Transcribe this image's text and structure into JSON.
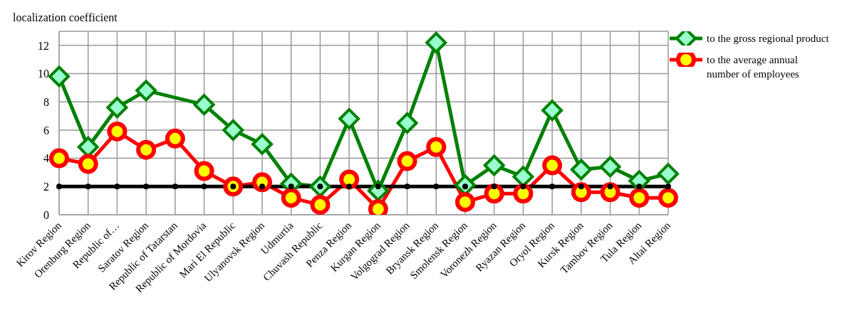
{
  "chart_data": {
    "type": "line",
    "ylabel": "localization coefficient",
    "categories": [
      "Kirov Region",
      "Orenburg Region",
      "Republic of…",
      "Saratov Region",
      "Republic of Tatarstan",
      "Republic of Mordovia",
      "Mari El Republic",
      "Ulyanovsk Region",
      "Udmurtia",
      "Chuvash Republic",
      "Penza Region",
      "Kurgan Region",
      "Volgograd Region",
      "Bryansk Region",
      "Smolensk Region",
      "Voronezh Region",
      "Ryazan Region",
      "Oryol Region",
      "Kursk Region",
      "Tambov Region",
      "Tula Region",
      "Altai Region"
    ],
    "series": [
      {
        "name": "to the gross regional product",
        "color": "#008000",
        "marker": "diamond",
        "values": [
          9.8,
          4.8,
          7.6,
          8.8,
          null,
          7.8,
          6.0,
          5.0,
          2.2,
          2.0,
          6.8,
          1.7,
          6.5,
          12.2,
          2.1,
          3.5,
          2.7,
          7.4,
          3.2,
          3.4,
          2.4,
          2.9
        ]
      },
      {
        "name": "to the average annual number of employees",
        "color": "#ff0000",
        "marker": "circle",
        "values": [
          4.0,
          3.6,
          5.9,
          4.6,
          5.4,
          3.1,
          2.0,
          2.3,
          1.2,
          0.7,
          2.5,
          0.4,
          3.8,
          4.8,
          0.9,
          1.5,
          1.5,
          3.5,
          1.6,
          1.6,
          1.2,
          1.2
        ]
      },
      {
        "color": "#000000",
        "marker": "circle",
        "values": [
          2,
          2,
          2,
          2,
          2,
          2,
          2,
          2,
          2,
          2,
          2,
          2,
          2,
          2,
          2,
          2,
          2,
          2,
          2,
          2,
          2,
          2
        ]
      }
    ],
    "ylim": [
      0,
      13
    ],
    "yticks": [
      0,
      2,
      4,
      6,
      8,
      10,
      12
    ],
    "grid": true,
    "legend": "top right",
    "line_style": "solid"
  }
}
